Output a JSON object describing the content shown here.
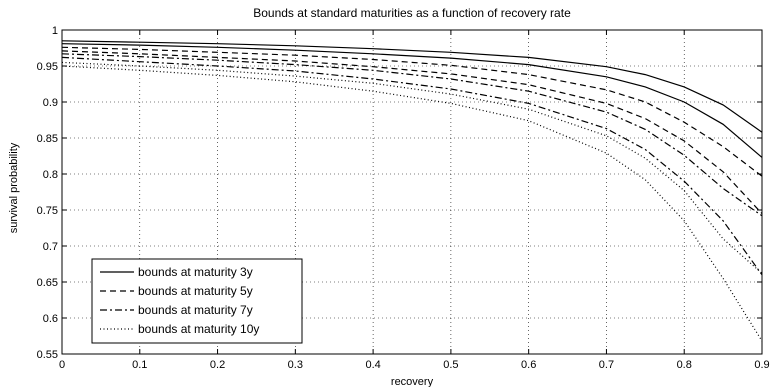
{
  "chart_data": {
    "type": "line",
    "title": "Bounds at standard maturities as a function of recovery rate",
    "xlabel": "recovery",
    "ylabel": "survival probability",
    "xlim": [
      0,
      0.9
    ],
    "ylim": [
      0.55,
      1
    ],
    "xticks": [
      0,
      0.1,
      0.2,
      0.3,
      0.4,
      0.5,
      0.6,
      0.7,
      0.8,
      0.9
    ],
    "yticks": [
      0.55,
      0.6,
      0.65,
      0.7,
      0.75,
      0.8,
      0.85,
      0.9,
      0.95,
      1
    ],
    "xtick_labels": [
      "0",
      "0.1",
      "0.2",
      "0.3",
      "0.4",
      "0.5",
      "0.6",
      "0.7",
      "0.8",
      "0.9"
    ],
    "ytick_labels": [
      "0.55",
      "0.6",
      "0.65",
      "0.7",
      "0.75",
      "0.8",
      "0.85",
      "0.9",
      "0.95",
      "1"
    ],
    "grid": true,
    "legend_position": "lower-left",
    "x": [
      0,
      0.1,
      0.2,
      0.3,
      0.4,
      0.5,
      0.6,
      0.7,
      0.75,
      0.8,
      0.85,
      0.9
    ],
    "series": [
      {
        "name": "bounds at maturity 3y",
        "linestyle": "solid",
        "color": "#000000",
        "legend_label": "bounds at maturity 3y",
        "curves": [
          [
            0.985,
            0.983,
            0.981,
            0.978,
            0.974,
            0.969,
            0.962,
            0.949,
            0.938,
            0.921,
            0.896,
            0.858
          ],
          [
            0.981,
            0.979,
            0.976,
            0.972,
            0.967,
            0.961,
            0.952,
            0.935,
            0.921,
            0.9,
            0.869,
            0.823
          ]
        ]
      },
      {
        "name": "bounds at maturity 5y",
        "linestyle": "dashed",
        "color": "#000000",
        "legend_label": "bounds at maturity 5y",
        "curves": [
          [
            0.976,
            0.973,
            0.969,
            0.965,
            0.959,
            0.951,
            0.938,
            0.917,
            0.9,
            0.872,
            0.838,
            0.797
          ],
          [
            0.971,
            0.967,
            0.962,
            0.957,
            0.949,
            0.939,
            0.924,
            0.898,
            0.877,
            0.846,
            0.803,
            0.745
          ]
        ]
      },
      {
        "name": "bounds at maturity 7y",
        "linestyle": "dashdot",
        "color": "#000000",
        "legend_label": "bounds at maturity 7y",
        "curves": [
          [
            0.967,
            0.963,
            0.958,
            0.952,
            0.944,
            0.932,
            0.915,
            0.886,
            0.862,
            0.826,
            0.78,
            0.742
          ],
          [
            0.962,
            0.956,
            0.95,
            0.943,
            0.932,
            0.918,
            0.898,
            0.863,
            0.834,
            0.79,
            0.735,
            0.66
          ]
        ]
      },
      {
        "name": "bounds at maturity 10y",
        "linestyle": "dotted",
        "color": "#000000",
        "legend_label": "bounds at maturity 10y",
        "curves": [
          [
            0.955,
            0.95,
            0.944,
            0.936,
            0.926,
            0.911,
            0.89,
            0.853,
            0.822,
            0.777,
            0.71,
            0.662
          ],
          [
            0.95,
            0.944,
            0.937,
            0.928,
            0.915,
            0.898,
            0.874,
            0.829,
            0.792,
            0.735,
            0.655,
            0.568
          ]
        ]
      }
    ]
  }
}
